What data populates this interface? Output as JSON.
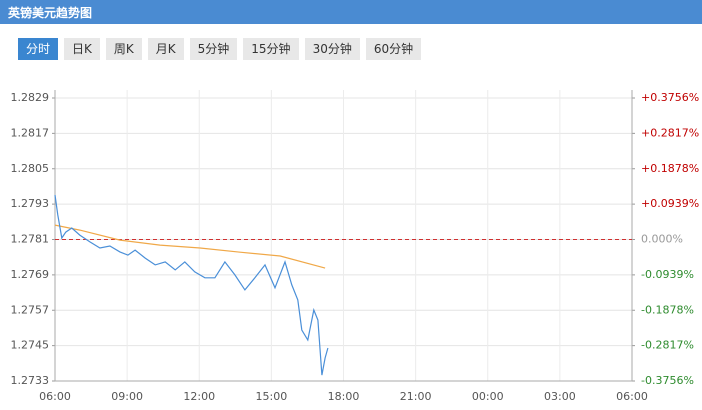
{
  "header": {
    "title": "英镑美元趋势图"
  },
  "tabs": {
    "items": [
      "分时",
      "日K",
      "周K",
      "月K",
      "5分钟",
      "15分钟",
      "30分钟",
      "60分钟"
    ],
    "active": 0
  },
  "chart_data": {
    "type": "line",
    "xlim": [
      0,
      1440
    ],
    "xticks": [
      {
        "value": 0,
        "label": "06:00"
      },
      {
        "value": 180,
        "label": "09:00"
      },
      {
        "value": 360,
        "label": "12:00"
      },
      {
        "value": 540,
        "label": "15:00"
      },
      {
        "value": 720,
        "label": "18:00"
      },
      {
        "value": 900,
        "label": "21:00"
      },
      {
        "value": 1080,
        "label": "00:00"
      },
      {
        "value": 1260,
        "label": "03:00"
      },
      {
        "value": 1440,
        "label": "06:00"
      }
    ],
    "ylim": [
      1.2733,
      1.2829
    ],
    "yticks": [
      1.2829,
      1.2817,
      1.2805,
      1.2793,
      1.2781,
      1.2769,
      1.2757,
      1.2745,
      1.2733
    ],
    "y2lim": [
      -0.3756,
      0.3756
    ],
    "y2ticks": [
      {
        "value": 0.3756,
        "label": "+0.3756%"
      },
      {
        "value": 0.2817,
        "label": "+0.2817%"
      },
      {
        "value": 0.1878,
        "label": "+0.1878%"
      },
      {
        "value": 0.0939,
        "label": "+0.0939%"
      },
      {
        "value": 0,
        "label": "0.000%"
      },
      {
        "value": -0.0939,
        "label": "-0.0939%"
      },
      {
        "value": -0.1878,
        "label": "-0.1878%"
      },
      {
        "value": -0.2817,
        "label": "-0.2817%"
      },
      {
        "value": -0.3756,
        "label": "-0.3756%"
      }
    ],
    "baseline": 1.2781,
    "grid": true,
    "series": [
      {
        "color": "#4a8fd8",
        "x": [
          0,
          7,
          17,
          27,
          42,
          62,
          87,
          112,
          137,
          162,
          182,
          200,
          225,
          250,
          275,
          300,
          324,
          349,
          374,
          399,
          424,
          449,
          474,
          499,
          524,
          549,
          574,
          591,
          606,
          616,
          631,
          646,
          656,
          666,
          674,
          681
        ],
        "values": [
          1.27961,
          1.27893,
          1.27815,
          1.27835,
          1.27849,
          1.27825,
          1.27802,
          1.27781,
          1.27788,
          1.27768,
          1.27757,
          1.27774,
          1.27747,
          1.27724,
          1.27734,
          1.27707,
          1.27734,
          1.277,
          1.2768,
          1.2768,
          1.27734,
          1.2769,
          1.27639,
          1.2768,
          1.27724,
          1.27646,
          1.27734,
          1.27656,
          1.27605,
          1.27503,
          1.27469,
          1.27571,
          1.27537,
          1.2735,
          1.27408,
          1.27442
        ]
      },
      {
        "color": "#f0a848",
        "x": [
          0,
          62,
          162,
          262,
          362,
          462,
          562,
          674
        ],
        "values": [
          1.27859,
          1.27842,
          1.27808,
          1.27791,
          1.27781,
          1.27767,
          1.27754,
          1.27713
        ]
      }
    ]
  }
}
